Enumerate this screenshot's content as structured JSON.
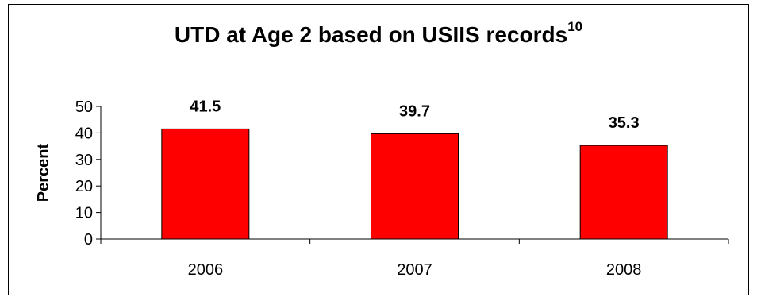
{
  "chart_data": {
    "type": "bar",
    "title": "UTD at Age 2 based on USIIS records",
    "title_superscript": "10",
    "categories": [
      "2006",
      "2007",
      "2008"
    ],
    "values": [
      41.5,
      39.7,
      35.3
    ],
    "value_labels": [
      "41.5",
      "39.7",
      "35.3"
    ],
    "xlabel": "",
    "ylabel": "Percent",
    "ylim": [
      0,
      50
    ],
    "yticks": [
      0,
      10,
      20,
      30,
      40,
      50
    ],
    "bar_color": "#ff0000",
    "grid": false,
    "legend": "none"
  }
}
